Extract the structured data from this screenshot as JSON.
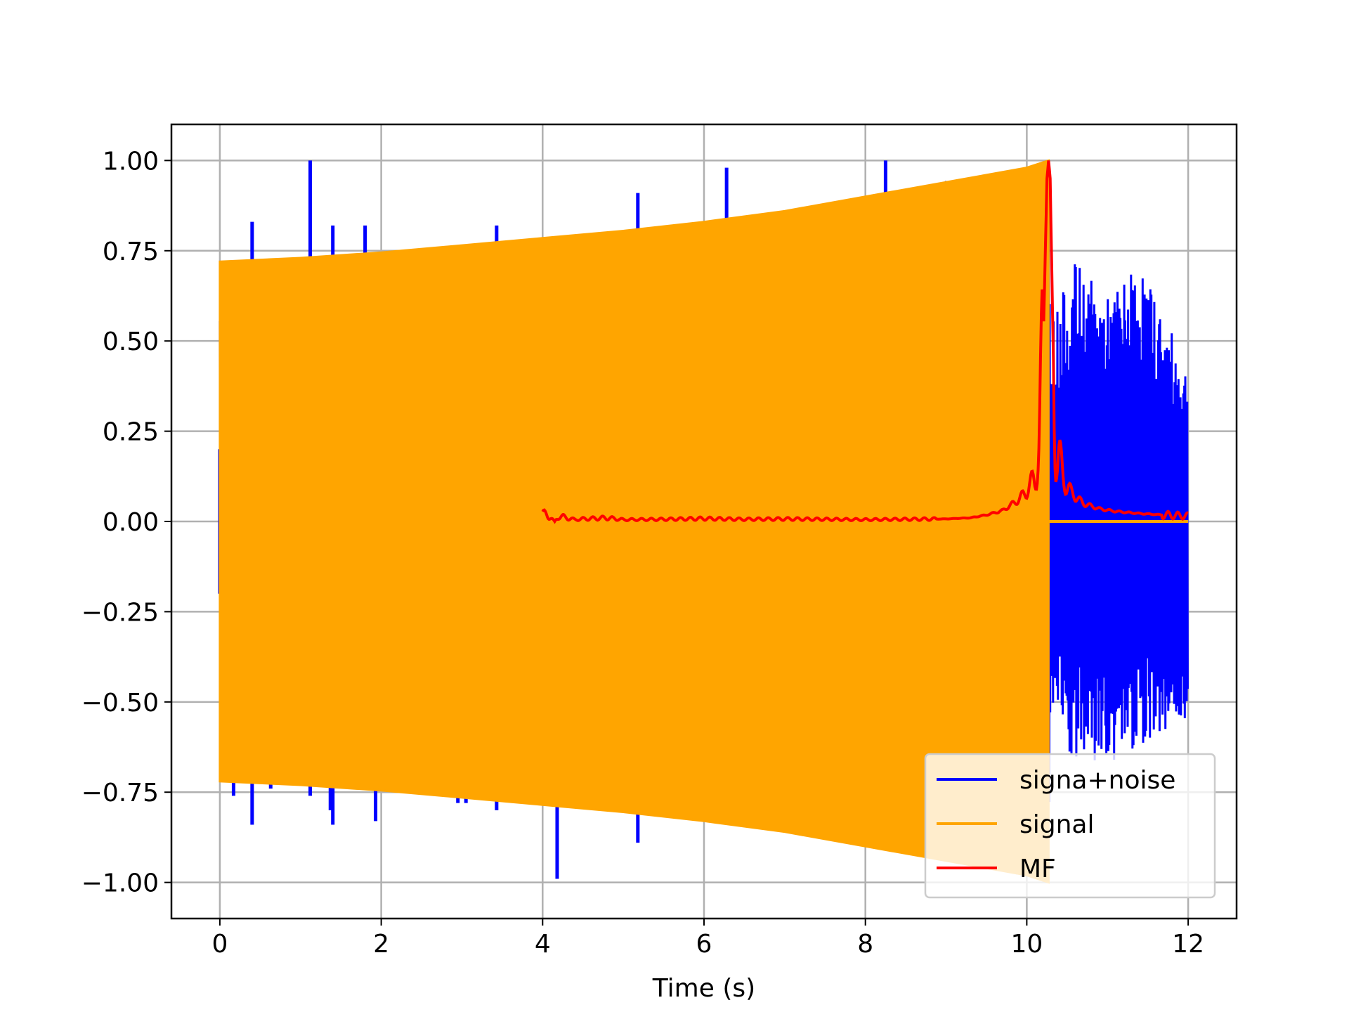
{
  "chart_data": {
    "type": "line",
    "title": "",
    "xlabel": "Time (s)",
    "ylabel": "",
    "xlim": [
      -0.6,
      12.6
    ],
    "ylim": [
      -1.1,
      1.1
    ],
    "xticks": [
      0,
      2,
      4,
      6,
      8,
      10,
      12
    ],
    "xtick_labels": [
      "0",
      "2",
      "4",
      "6",
      "8",
      "10",
      "12"
    ],
    "yticks": [
      1.0,
      0.75,
      0.5,
      0.25,
      0.0,
      -0.25,
      -0.5,
      -0.75,
      -1.0
    ],
    "ytick_labels": [
      "1.00",
      "0.75",
      "0.50",
      "0.25",
      "0.00",
      "−0.25",
      "−0.50",
      "−0.75",
      "−1.00"
    ],
    "grid": true,
    "legend_position": "lower-right",
    "series": [
      {
        "name": "signa+noise",
        "color": "#0000ff",
        "style": "noisy-envelope",
        "upper": [
          [
            0.0,
            0.72
          ],
          [
            2.0,
            0.74
          ],
          [
            4.0,
            0.78
          ],
          [
            6.0,
            0.83
          ],
          [
            8.0,
            0.9
          ],
          [
            10.27,
            1.0
          ],
          [
            10.3,
            0.55
          ],
          [
            10.6,
            0.72
          ],
          [
            11.0,
            0.62
          ],
          [
            11.4,
            0.72
          ],
          [
            12.0,
            0.42
          ]
        ],
        "lower": [
          [
            0.0,
            -0.72
          ],
          [
            2.0,
            -0.74
          ],
          [
            4.0,
            -0.78
          ],
          [
            6.0,
            -0.83
          ],
          [
            8.0,
            -0.9
          ],
          [
            10.27,
            -1.0
          ],
          [
            10.3,
            -0.55
          ],
          [
            10.6,
            -0.7
          ],
          [
            11.0,
            -0.68
          ],
          [
            11.4,
            -0.62
          ],
          [
            12.0,
            -0.55
          ]
        ],
        "spikes": [
          [
            0.0,
            0.2
          ],
          [
            0.0,
            -0.2
          ],
          [
            0.17,
            -0.76
          ],
          [
            0.4,
            0.83
          ],
          [
            0.4,
            -0.84
          ],
          [
            0.63,
            -0.74
          ],
          [
            1.12,
            1.0
          ],
          [
            1.12,
            -0.76
          ],
          [
            1.37,
            -0.8
          ],
          [
            1.4,
            0.82
          ],
          [
            1.4,
            -0.84
          ],
          [
            1.8,
            0.82
          ],
          [
            1.93,
            -0.83
          ],
          [
            2.95,
            -0.78
          ],
          [
            3.05,
            -0.78
          ],
          [
            3.43,
            0.82
          ],
          [
            3.43,
            -0.8
          ],
          [
            4.18,
            -0.99
          ],
          [
            5.18,
            0.91
          ],
          [
            5.18,
            -0.89
          ],
          [
            6.28,
            0.98
          ],
          [
            8.25,
            1.0
          ]
        ]
      },
      {
        "name": "signal",
        "color": "#ffa500",
        "style": "filled-chirp",
        "envelope": [
          [
            0.0,
            0.72
          ],
          [
            1.0,
            0.73
          ],
          [
            2.0,
            0.745
          ],
          [
            3.0,
            0.765
          ],
          [
            4.0,
            0.785
          ],
          [
            5.0,
            0.805
          ],
          [
            6.0,
            0.83
          ],
          [
            7.0,
            0.86
          ],
          [
            8.0,
            0.9
          ],
          [
            9.0,
            0.94
          ],
          [
            10.0,
            0.98
          ],
          [
            10.27,
            1.0
          ]
        ],
        "after": [
          [
            10.27,
            0.0
          ],
          [
            12.0,
            0.0
          ]
        ]
      },
      {
        "name": "MF",
        "color": "#ff0000",
        "style": "line",
        "points": [
          [
            4.0,
            0.02
          ],
          [
            4.05,
            0.02
          ],
          [
            4.1,
            0.01
          ],
          [
            4.15,
            0.0
          ],
          [
            4.2,
            0.015
          ],
          [
            4.3,
            0.01
          ],
          [
            4.4,
            0.005
          ],
          [
            4.5,
            0.007
          ],
          [
            4.8,
            0.01
          ],
          [
            5.0,
            0.005
          ],
          [
            5.5,
            0.006
          ],
          [
            6.0,
            0.008
          ],
          [
            6.5,
            0.006
          ],
          [
            7.0,
            0.007
          ],
          [
            7.5,
            0.006
          ],
          [
            8.0,
            0.005
          ],
          [
            8.5,
            0.006
          ],
          [
            9.0,
            0.007
          ],
          [
            9.3,
            0.01
          ],
          [
            9.5,
            0.018
          ],
          [
            9.7,
            0.03
          ],
          [
            9.8,
            0.045
          ],
          [
            9.9,
            0.06
          ],
          [
            10.0,
            0.085
          ],
          [
            10.1,
            0.12
          ],
          [
            10.15,
            0.2
          ],
          [
            10.2,
            0.45
          ],
          [
            10.25,
            0.95
          ],
          [
            10.27,
            1.0
          ],
          [
            10.29,
            0.95
          ],
          [
            10.33,
            0.45
          ],
          [
            10.38,
            0.2
          ],
          [
            10.45,
            0.12
          ],
          [
            10.55,
            0.08
          ],
          [
            10.7,
            0.05
          ],
          [
            10.9,
            0.035
          ],
          [
            11.1,
            0.028
          ],
          [
            11.4,
            0.022
          ],
          [
            11.7,
            0.018
          ],
          [
            12.0,
            0.015
          ]
        ]
      }
    ]
  }
}
